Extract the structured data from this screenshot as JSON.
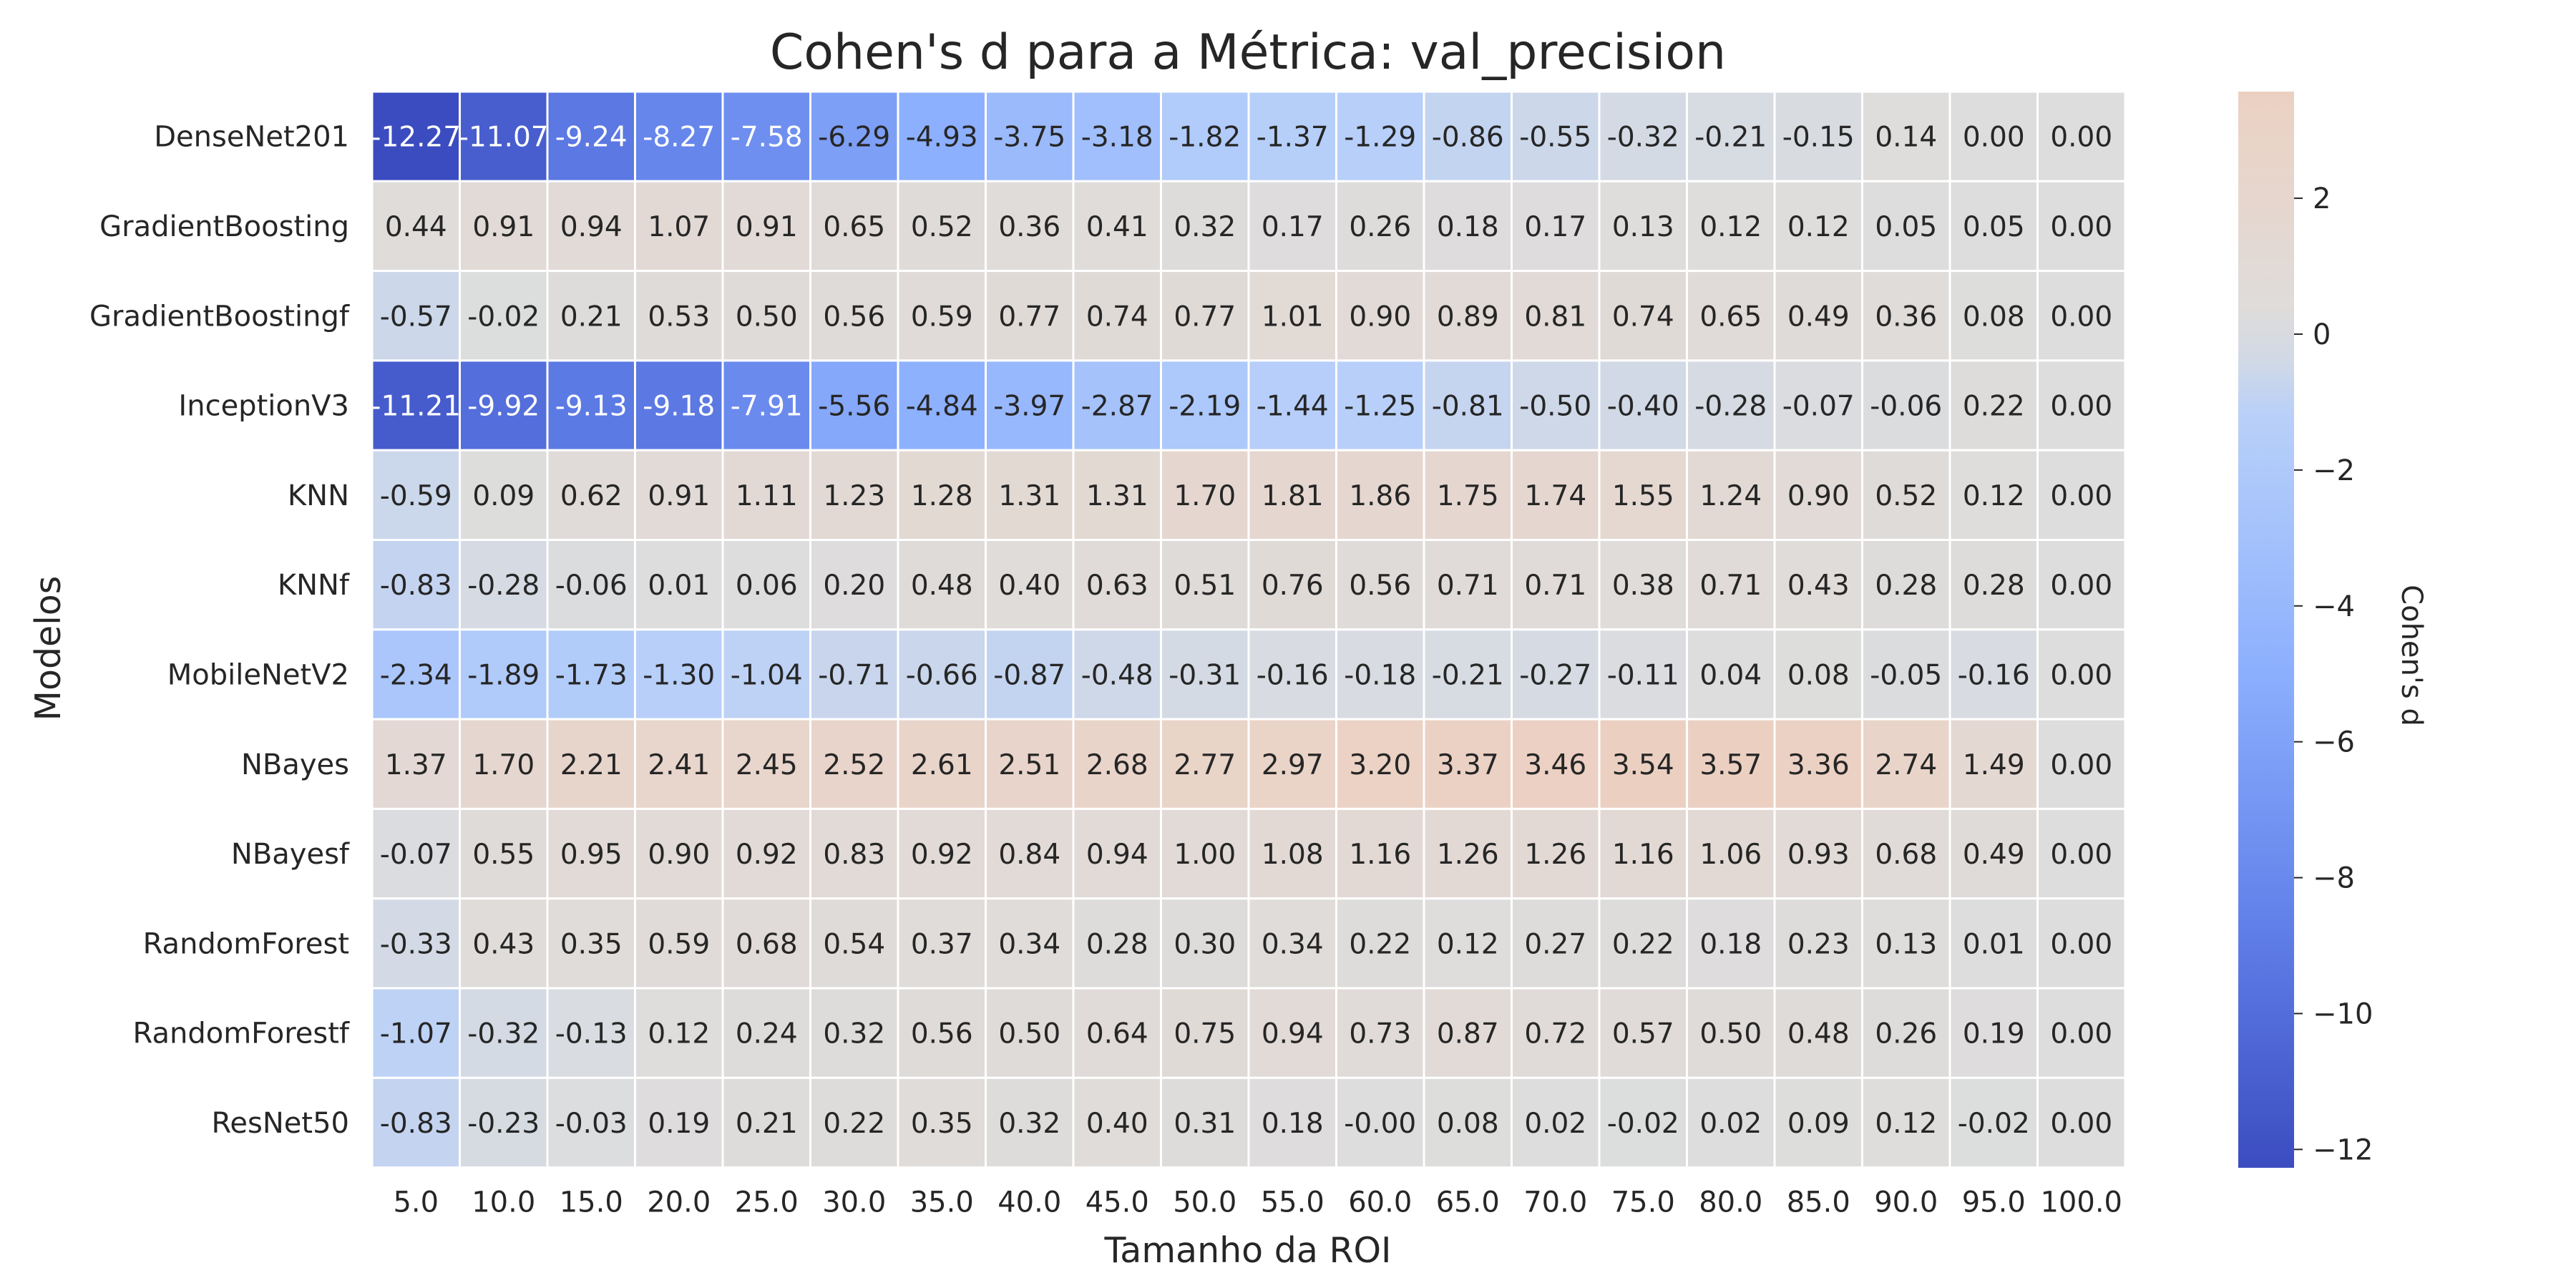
{
  "chart_data": {
    "type": "heatmap",
    "title": "Cohen's d para a Métrica: val_precision",
    "xlabel": "Tamanho da ROI",
    "ylabel": "Modelos",
    "x": [
      "5.0",
      "10.0",
      "15.0",
      "20.0",
      "25.0",
      "30.0",
      "35.0",
      "40.0",
      "45.0",
      "50.0",
      "55.0",
      "60.0",
      "65.0",
      "70.0",
      "75.0",
      "80.0",
      "85.0",
      "90.0",
      "95.0",
      "100.0"
    ],
    "y": [
      "DenseNet201",
      "GradientBoosting",
      "GradientBoostingf",
      "InceptionV3",
      "KNN",
      "KNNf",
      "MobileNetV2",
      "NBayes",
      "NBayesf",
      "RandomForest",
      "RandomForestf",
      "ResNet50"
    ],
    "values": [
      [
        "-12.27",
        "-11.07",
        "-9.24",
        "-8.27",
        "-7.58",
        "-6.29",
        "-4.93",
        "-3.75",
        "-3.18",
        "-1.82",
        "-1.37",
        "-1.29",
        "-0.86",
        "-0.55",
        "-0.32",
        "-0.21",
        "-0.15",
        "0.14",
        "0.00",
        "0.00"
      ],
      [
        "0.44",
        "0.91",
        "0.94",
        "1.07",
        "0.91",
        "0.65",
        "0.52",
        "0.36",
        "0.41",
        "0.32",
        "0.17",
        "0.26",
        "0.18",
        "0.17",
        "0.13",
        "0.12",
        "0.12",
        "0.05",
        "0.05",
        "0.00"
      ],
      [
        "-0.57",
        "-0.02",
        "0.21",
        "0.53",
        "0.50",
        "0.56",
        "0.59",
        "0.77",
        "0.74",
        "0.77",
        "1.01",
        "0.90",
        "0.89",
        "0.81",
        "0.74",
        "0.65",
        "0.49",
        "0.36",
        "0.08",
        "0.00"
      ],
      [
        "-11.21",
        "-9.92",
        "-9.13",
        "-9.18",
        "-7.91",
        "-5.56",
        "-4.84",
        "-3.97",
        "-2.87",
        "-2.19",
        "-1.44",
        "-1.25",
        "-0.81",
        "-0.50",
        "-0.40",
        "-0.28",
        "-0.07",
        "-0.06",
        "0.22",
        "0.00"
      ],
      [
        "-0.59",
        "0.09",
        "0.62",
        "0.91",
        "1.11",
        "1.23",
        "1.28",
        "1.31",
        "1.31",
        "1.70",
        "1.81",
        "1.86",
        "1.75",
        "1.74",
        "1.55",
        "1.24",
        "0.90",
        "0.52",
        "0.12",
        "0.00"
      ],
      [
        "-0.83",
        "-0.28",
        "-0.06",
        "0.01",
        "0.06",
        "0.20",
        "0.48",
        "0.40",
        "0.63",
        "0.51",
        "0.76",
        "0.56",
        "0.71",
        "0.71",
        "0.38",
        "0.71",
        "0.43",
        "0.28",
        "0.28",
        "0.00"
      ],
      [
        "-2.34",
        "-1.89",
        "-1.73",
        "-1.30",
        "-1.04",
        "-0.71",
        "-0.66",
        "-0.87",
        "-0.48",
        "-0.31",
        "-0.16",
        "-0.18",
        "-0.21",
        "-0.27",
        "-0.11",
        "0.04",
        "0.08",
        "-0.05",
        "-0.16",
        "0.00"
      ],
      [
        "1.37",
        "1.70",
        "2.21",
        "2.41",
        "2.45",
        "2.52",
        "2.61",
        "2.51",
        "2.68",
        "2.77",
        "2.97",
        "3.20",
        "3.37",
        "3.46",
        "3.54",
        "3.57",
        "3.36",
        "2.74",
        "1.49",
        "0.00"
      ],
      [
        "-0.07",
        "0.55",
        "0.95",
        "0.90",
        "0.92",
        "0.83",
        "0.92",
        "0.84",
        "0.94",
        "1.00",
        "1.08",
        "1.16",
        "1.26",
        "1.26",
        "1.16",
        "1.06",
        "0.93",
        "0.68",
        "0.49",
        "0.00"
      ],
      [
        "-0.33",
        "0.43",
        "0.35",
        "0.59",
        "0.68",
        "0.54",
        "0.37",
        "0.34",
        "0.28",
        "0.30",
        "0.34",
        "0.22",
        "0.12",
        "0.27",
        "0.22",
        "0.18",
        "0.23",
        "0.13",
        "0.01",
        "0.00"
      ],
      [
        "-1.07",
        "-0.32",
        "-0.13",
        "0.12",
        "0.24",
        "0.32",
        "0.56",
        "0.50",
        "0.64",
        "0.75",
        "0.94",
        "0.73",
        "0.87",
        "0.72",
        "0.57",
        "0.50",
        "0.48",
        "0.26",
        "0.19",
        "0.00"
      ],
      [
        "-0.83",
        "-0.23",
        "-0.03",
        "0.19",
        "0.21",
        "0.22",
        "0.35",
        "0.32",
        "0.40",
        "0.31",
        "0.18",
        "-0.00",
        "0.08",
        "0.02",
        "-0.02",
        "0.02",
        "0.09",
        "0.12",
        "-0.02",
        "0.00"
      ]
    ],
    "colormap": "coolwarm",
    "center": 0,
    "vmin": -12.27,
    "vmax": 3.57,
    "colorbar": {
      "label": "Cohen's d",
      "ticks": [
        2,
        0,
        -2,
        -4,
        -6,
        -8,
        -10,
        -12
      ],
      "tick_labels": [
        "2",
        "0",
        "−2",
        "−4",
        "−6",
        "−8",
        "−10",
        "−12"
      ]
    },
    "grid": false
  }
}
